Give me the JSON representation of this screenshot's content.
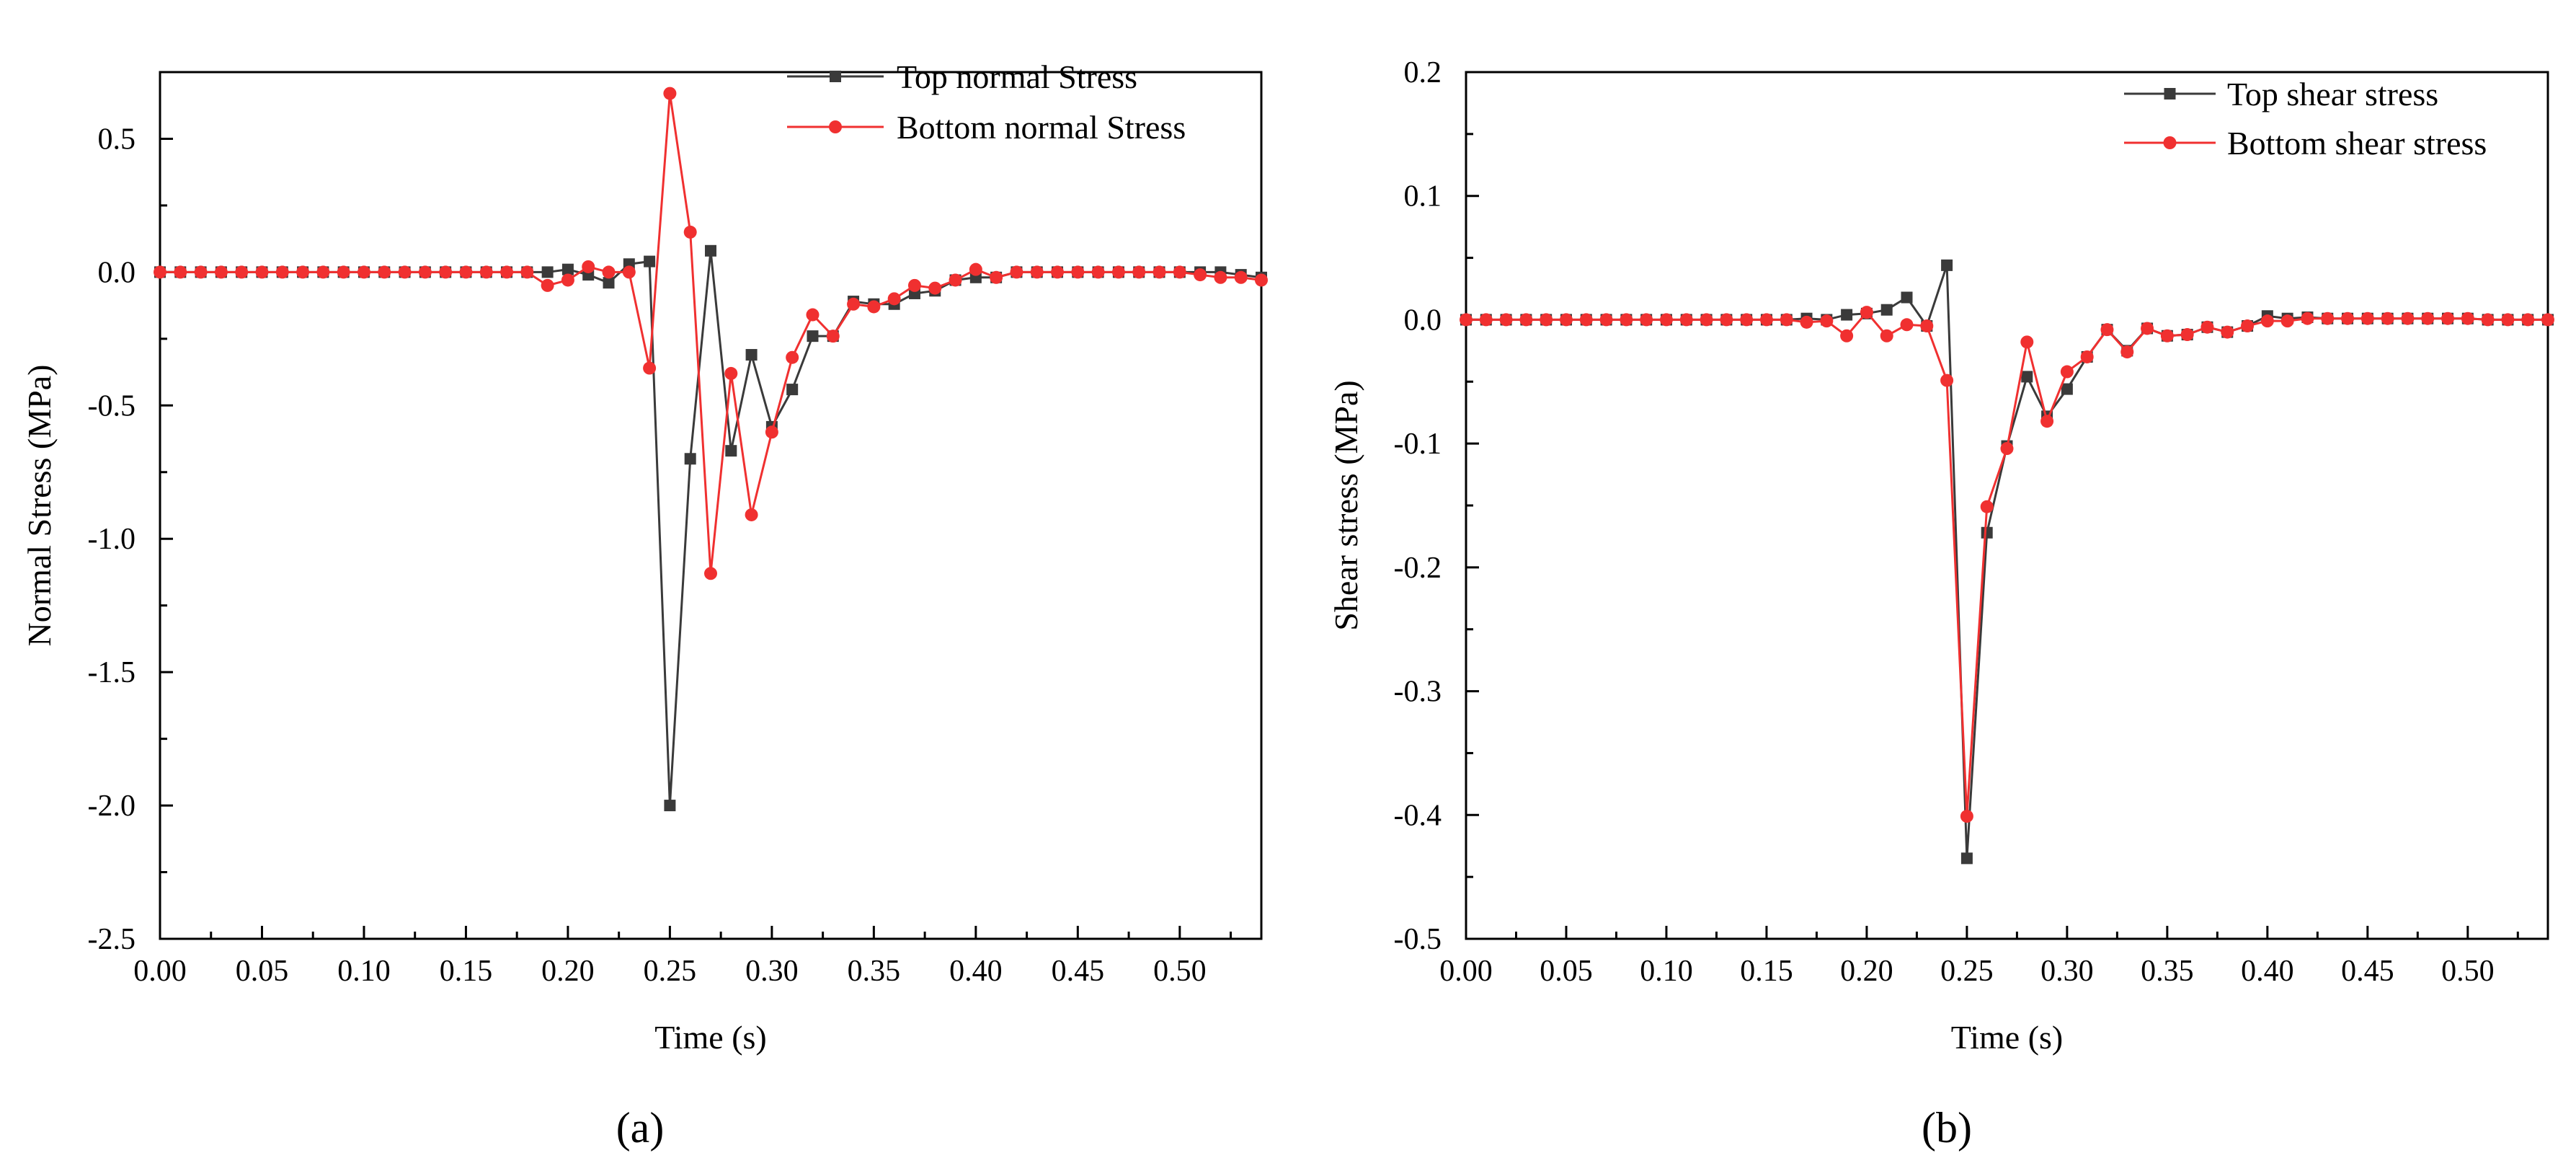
{
  "figure": {
    "panel_labels": [
      "(a)",
      "(b)"
    ]
  },
  "chart_data": [
    {
      "type": "line",
      "panel": "(a)",
      "title": "",
      "xlabel": "Time (s)",
      "ylabel": "Normal Stress (MPa)",
      "xlim": [
        0,
        0.54
      ],
      "ylim": [
        -2.5,
        0.75
      ],
      "xticks": [
        0,
        0.05,
        0.1,
        0.15,
        0.2,
        0.25,
        0.3,
        0.35,
        0.4,
        0.45,
        0.5
      ],
      "xtick_labels": [
        "0.00",
        "0.05",
        "0.10",
        "0.15",
        "0.20",
        "0.25",
        "0.30",
        "0.35",
        "0.40",
        "0.45",
        "0.50"
      ],
      "yticks": [
        -2.5,
        -2.0,
        -1.5,
        -1.0,
        -0.5,
        0.0,
        0.5
      ],
      "ytick_labels": [
        "-2.5",
        "-2.0",
        "-1.5",
        "-1.0",
        "-0.5",
        "0.0",
        "0.5"
      ],
      "legend_position": "top-right",
      "series": [
        {
          "name": "Top normal Stress",
          "color": "#3a3a3a",
          "marker": "square",
          "x": [
            0,
            0.01,
            0.02,
            0.03,
            0.04,
            0.05,
            0.06,
            0.07,
            0.08,
            0.09,
            0.1,
            0.11,
            0.12,
            0.13,
            0.14,
            0.15,
            0.16,
            0.17,
            0.18,
            0.19,
            0.2,
            0.21,
            0.22,
            0.23,
            0.24,
            0.25,
            0.26,
            0.27,
            0.28,
            0.29,
            0.3,
            0.31,
            0.32,
            0.33,
            0.34,
            0.35,
            0.36,
            0.37,
            0.38,
            0.39,
            0.4,
            0.41,
            0.42,
            0.43,
            0.44,
            0.45,
            0.46,
            0.47,
            0.48,
            0.49,
            0.5,
            0.51,
            0.52,
            0.53,
            0.54
          ],
          "y": [
            0,
            0,
            0,
            0,
            0,
            0,
            0,
            0,
            0,
            0,
            0,
            0,
            0,
            0,
            0,
            0,
            0,
            0,
            0,
            0.0,
            0.01,
            -0.01,
            -0.04,
            0.03,
            0.04,
            -2.0,
            -0.7,
            0.08,
            -0.67,
            -0.31,
            -0.58,
            -0.44,
            -0.24,
            -0.24,
            -0.11,
            -0.12,
            -0.12,
            -0.08,
            -0.07,
            -0.03,
            -0.02,
            -0.02,
            0.0,
            0.0,
            0.0,
            0.0,
            0.0,
            0.0,
            0.0,
            0.0,
            0.0,
            0.0,
            0.0,
            -0.01,
            -0.02
          ]
        },
        {
          "name": "Bottom normal Stress",
          "color": "#f03030",
          "marker": "circle",
          "x": [
            0,
            0.01,
            0.02,
            0.03,
            0.04,
            0.05,
            0.06,
            0.07,
            0.08,
            0.09,
            0.1,
            0.11,
            0.12,
            0.13,
            0.14,
            0.15,
            0.16,
            0.17,
            0.18,
            0.19,
            0.2,
            0.21,
            0.22,
            0.23,
            0.24,
            0.25,
            0.26,
            0.27,
            0.28,
            0.29,
            0.3,
            0.31,
            0.32,
            0.33,
            0.34,
            0.35,
            0.36,
            0.37,
            0.38,
            0.39,
            0.4,
            0.41,
            0.42,
            0.43,
            0.44,
            0.45,
            0.46,
            0.47,
            0.48,
            0.49,
            0.5,
            0.51,
            0.52,
            0.53,
            0.54
          ],
          "y": [
            0,
            0,
            0,
            0,
            0,
            0,
            0,
            0,
            0,
            0,
            0,
            0,
            0,
            0,
            0,
            0,
            0,
            0,
            0,
            -0.05,
            -0.03,
            0.02,
            0.0,
            0.0,
            -0.36,
            0.67,
            0.15,
            -1.13,
            -0.38,
            -0.91,
            -0.6,
            -0.32,
            -0.16,
            -0.24,
            -0.12,
            -0.13,
            -0.1,
            -0.05,
            -0.06,
            -0.03,
            0.01,
            -0.02,
            0.0,
            0.0,
            0.0,
            0.0,
            0.0,
            0.0,
            0.0,
            0.0,
            0.0,
            -0.01,
            -0.02,
            -0.02,
            -0.03
          ]
        }
      ]
    },
    {
      "type": "line",
      "panel": "(b)",
      "title": "",
      "xlabel": "Time (s)",
      "ylabel": "Shear stress (MPa)",
      "xlim": [
        0,
        0.54
      ],
      "ylim": [
        -0.5,
        0.2
      ],
      "xticks": [
        0,
        0.05,
        0.1,
        0.15,
        0.2,
        0.25,
        0.3,
        0.35,
        0.4,
        0.45,
        0.5
      ],
      "xtick_labels": [
        "0.00",
        "0.05",
        "0.10",
        "0.15",
        "0.20",
        "0.25",
        "0.30",
        "0.35",
        "0.40",
        "0.45",
        "0.50"
      ],
      "yticks": [
        -0.5,
        -0.4,
        -0.3,
        -0.2,
        -0.1,
        0.0,
        0.1,
        0.2
      ],
      "ytick_labels": [
        "-0.5",
        "-0.4",
        "-0.3",
        "-0.2",
        "-0.1",
        "0.0",
        "0.1",
        "0.2"
      ],
      "legend_position": "top-right",
      "series": [
        {
          "name": "Top shear stress",
          "color": "#3a3a3a",
          "marker": "square",
          "x": [
            0,
            0.01,
            0.02,
            0.03,
            0.04,
            0.05,
            0.06,
            0.07,
            0.08,
            0.09,
            0.1,
            0.11,
            0.12,
            0.13,
            0.14,
            0.15,
            0.16,
            0.17,
            0.18,
            0.19,
            0.2,
            0.21,
            0.22,
            0.23,
            0.24,
            0.25,
            0.26,
            0.27,
            0.28,
            0.29,
            0.3,
            0.31,
            0.32,
            0.33,
            0.34,
            0.35,
            0.36,
            0.37,
            0.38,
            0.39,
            0.4,
            0.41,
            0.42,
            0.43,
            0.44,
            0.45,
            0.46,
            0.47,
            0.48,
            0.49,
            0.5,
            0.51,
            0.52,
            0.53,
            0.54
          ],
          "y": [
            0,
            0,
            0,
            0,
            0,
            0,
            0,
            0,
            0,
            0,
            0,
            0,
            0,
            0,
            0,
            0,
            0,
            0.001,
            0.0,
            0.004,
            0.005,
            0.008,
            0.018,
            -0.005,
            0.044,
            -0.435,
            -0.172,
            -0.102,
            -0.046,
            -0.078,
            -0.056,
            -0.03,
            -0.008,
            -0.025,
            -0.007,
            -0.013,
            -0.012,
            -0.006,
            -0.01,
            -0.005,
            0.003,
            0.001,
            0.002,
            0.001,
            0.001,
            0.001,
            0.001,
            0.001,
            0.001,
            0.001,
            0.001,
            0.0,
            0.0,
            0.0,
            0.0
          ]
        },
        {
          "name": "Bottom shear stress",
          "color": "#f03030",
          "marker": "circle",
          "x": [
            0,
            0.01,
            0.02,
            0.03,
            0.04,
            0.05,
            0.06,
            0.07,
            0.08,
            0.09,
            0.1,
            0.11,
            0.12,
            0.13,
            0.14,
            0.15,
            0.16,
            0.17,
            0.18,
            0.19,
            0.2,
            0.21,
            0.22,
            0.23,
            0.24,
            0.25,
            0.26,
            0.27,
            0.28,
            0.29,
            0.3,
            0.31,
            0.32,
            0.33,
            0.34,
            0.35,
            0.36,
            0.37,
            0.38,
            0.39,
            0.4,
            0.41,
            0.42,
            0.43,
            0.44,
            0.45,
            0.46,
            0.47,
            0.48,
            0.49,
            0.5,
            0.51,
            0.52,
            0.53,
            0.54
          ],
          "y": [
            0,
            0,
            0,
            0,
            0,
            0,
            0,
            0,
            0,
            0,
            0,
            0,
            0,
            0,
            0,
            0,
            0,
            -0.002,
            -0.001,
            -0.013,
            0.006,
            -0.013,
            -0.004,
            -0.005,
            -0.049,
            -0.401,
            -0.151,
            -0.104,
            -0.018,
            -0.082,
            -0.042,
            -0.03,
            -0.008,
            -0.026,
            -0.007,
            -0.013,
            -0.012,
            -0.006,
            -0.01,
            -0.005,
            -0.001,
            -0.001,
            0.001,
            0.001,
            0.001,
            0.001,
            0.001,
            0.001,
            0.001,
            0.001,
            0.001,
            0.0,
            0.0,
            0.0,
            0.0
          ]
        }
      ]
    }
  ]
}
